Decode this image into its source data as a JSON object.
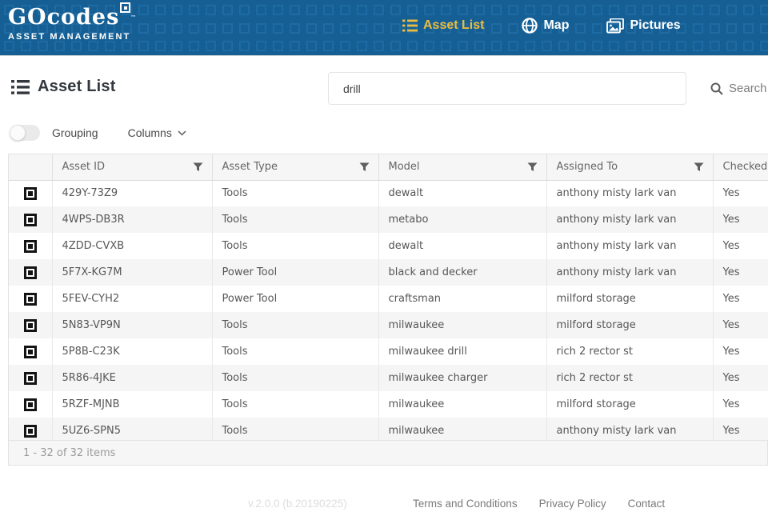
{
  "app": {
    "logo_go": "GO",
    "logo_codes": "codes",
    "logo_tm": "™",
    "tagline": "ASSET MANAGEMENT"
  },
  "nav": {
    "items": [
      {
        "label": "Asset List",
        "icon": "asset-list-icon",
        "active": true
      },
      {
        "label": "Map",
        "icon": "map-globe-icon",
        "active": false
      },
      {
        "label": "Pictures",
        "icon": "pictures-icon",
        "active": false
      }
    ]
  },
  "page": {
    "title": "Asset List"
  },
  "search": {
    "value": "drill",
    "button_label": "Search"
  },
  "toolbar": {
    "grouping_label": "Grouping",
    "grouping_state": "off",
    "columns_label": "Columns"
  },
  "table": {
    "columns": [
      {
        "key": "qr",
        "label": "",
        "filter": false
      },
      {
        "key": "asset_id",
        "label": "Asset ID",
        "filter": true
      },
      {
        "key": "asset_type",
        "label": "Asset Type",
        "filter": true
      },
      {
        "key": "model",
        "label": "Model",
        "filter": true
      },
      {
        "key": "assigned_to",
        "label": "Assigned To",
        "filter": true
      },
      {
        "key": "checked",
        "label": "Checked",
        "filter": false
      }
    ],
    "rows": [
      {
        "asset_id": "429Y-73Z9",
        "asset_type": "Tools",
        "model": "dewalt",
        "assigned_to": "anthony misty lark van",
        "checked": "Yes"
      },
      {
        "asset_id": "4WPS-DB3R",
        "asset_type": "Tools",
        "model": "metabo",
        "assigned_to": "anthony misty lark van",
        "checked": "Yes"
      },
      {
        "asset_id": "4ZDD-CVXB",
        "asset_type": "Tools",
        "model": "dewalt",
        "assigned_to": "anthony misty lark van",
        "checked": "Yes"
      },
      {
        "asset_id": "5F7X-KG7M",
        "asset_type": "Power Tool",
        "model": "black and decker",
        "assigned_to": "anthony misty lark van",
        "checked": "Yes"
      },
      {
        "asset_id": "5FEV-CYH2",
        "asset_type": "Power Tool",
        "model": "craftsman",
        "assigned_to": "milford storage",
        "checked": "Yes"
      },
      {
        "asset_id": "5N83-VP9N",
        "asset_type": "Tools",
        "model": "milwaukee",
        "assigned_to": "milford storage",
        "checked": "Yes"
      },
      {
        "asset_id": "5P8B-C23K",
        "asset_type": "Tools",
        "model": "milwaukee drill",
        "assigned_to": "rich 2 rector st",
        "checked": "Yes"
      },
      {
        "asset_id": "5R86-4JKE",
        "asset_type": "Tools",
        "model": "milwaukee charger",
        "assigned_to": "rich 2 rector st",
        "checked": "Yes"
      },
      {
        "asset_id": "5RZF-MJNB",
        "asset_type": "Tools",
        "model": "milwaukee",
        "assigned_to": "milford storage",
        "checked": "Yes"
      },
      {
        "asset_id": "5UZ6-SPN5",
        "asset_type": "Tools",
        "model": "milwaukee",
        "assigned_to": "anthony misty lark van",
        "checked": "Yes"
      }
    ],
    "pager_text": "1 - 32 of 32 items"
  },
  "footer": {
    "version": "v.2.0.0 (b.20190225)",
    "links": [
      "Terms and Conditions",
      "Privacy Policy",
      "Contact"
    ]
  },
  "colors": {
    "header_bg": "#155f94",
    "header_pattern": "#1e6ba4",
    "nav_active": "#eebd3d",
    "row_alt": "#f5f5f5",
    "grid_header_bg": "#f6f6f6"
  }
}
